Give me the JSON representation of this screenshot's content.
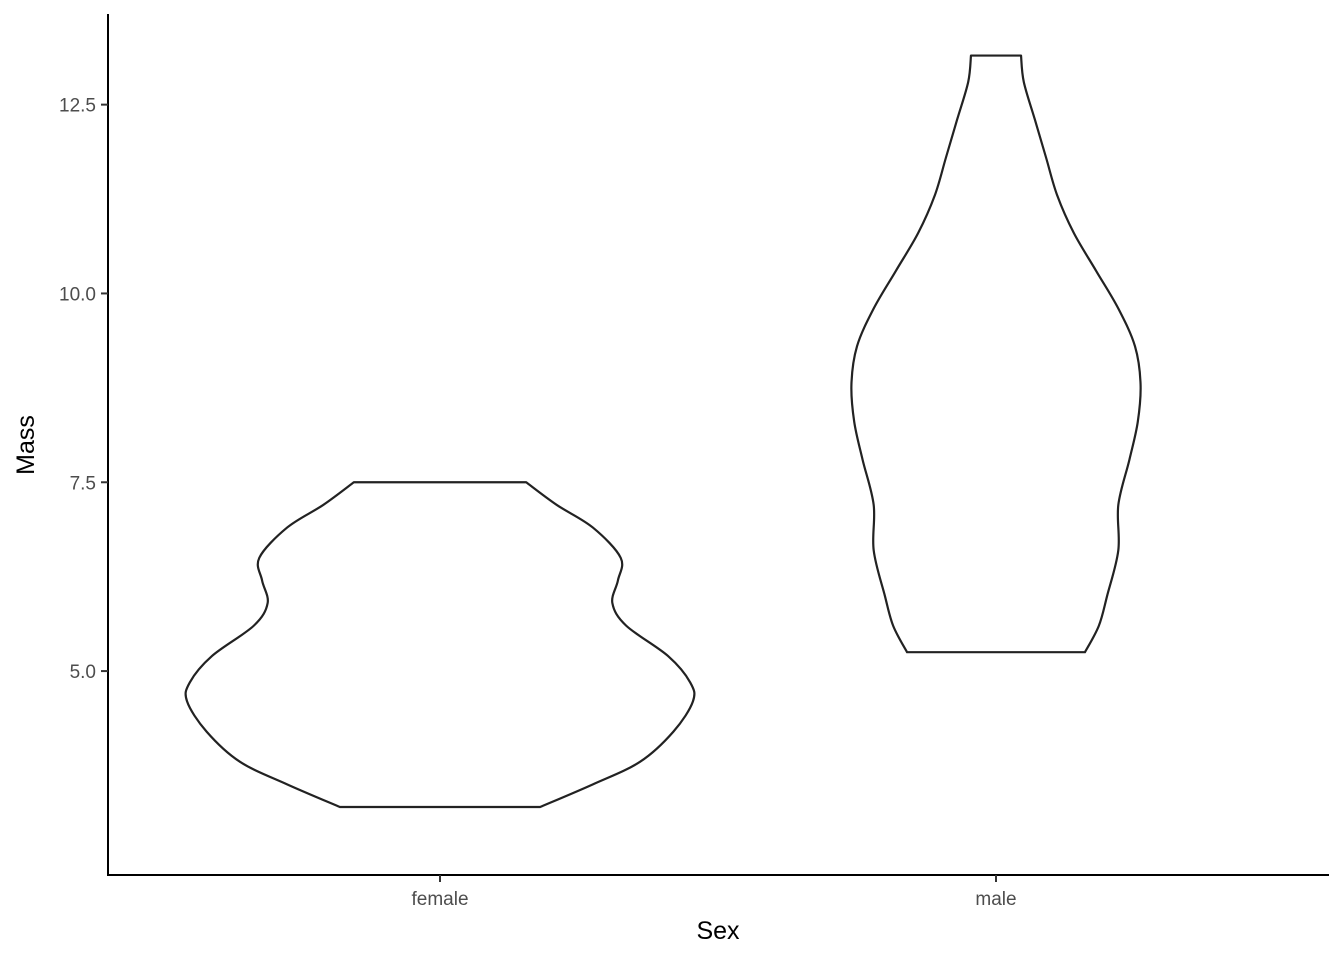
{
  "chart_data": {
    "type": "violin",
    "title": "",
    "xlabel": "Sex",
    "ylabel": "Mass",
    "categories": [
      "female",
      "male"
    ],
    "ylim": [
      2.3,
      13.7
    ],
    "y_ticks": [
      5.0,
      7.5,
      10.0,
      12.5
    ],
    "y_tick_labels": [
      "5.0",
      "7.5",
      "10.0",
      "12.5"
    ],
    "grid": false,
    "legend": "none",
    "colors": {
      "outline": "#222222",
      "fill": "#ffffff",
      "axis": "#000000"
    },
    "series": [
      {
        "category": "female",
        "y_min": 3.2,
        "y_max": 7.5,
        "density_profile": [
          {
            "y": 3.2,
            "half_width": 0.36
          },
          {
            "y": 3.5,
            "half_width": 0.55
          },
          {
            "y": 3.8,
            "half_width": 0.72
          },
          {
            "y": 4.2,
            "half_width": 0.84
          },
          {
            "y": 4.6,
            "half_width": 0.91
          },
          {
            "y": 4.85,
            "half_width": 0.9
          },
          {
            "y": 5.2,
            "half_width": 0.82
          },
          {
            "y": 5.6,
            "half_width": 0.67
          },
          {
            "y": 5.9,
            "half_width": 0.62
          },
          {
            "y": 6.2,
            "half_width": 0.64
          },
          {
            "y": 6.5,
            "half_width": 0.65
          },
          {
            "y": 6.9,
            "half_width": 0.55
          },
          {
            "y": 7.2,
            "half_width": 0.42
          },
          {
            "y": 7.5,
            "half_width": 0.31
          }
        ]
      },
      {
        "category": "male",
        "y_min": 5.25,
        "y_max": 13.15,
        "density_profile": [
          {
            "y": 5.25,
            "half_width": 0.32
          },
          {
            "y": 5.6,
            "half_width": 0.37
          },
          {
            "y": 6.0,
            "half_width": 0.4
          },
          {
            "y": 6.6,
            "half_width": 0.44
          },
          {
            "y": 7.2,
            "half_width": 0.44
          },
          {
            "y": 7.8,
            "half_width": 0.48
          },
          {
            "y": 8.3,
            "half_width": 0.51
          },
          {
            "y": 8.8,
            "half_width": 0.52
          },
          {
            "y": 9.3,
            "half_width": 0.5
          },
          {
            "y": 9.8,
            "half_width": 0.44
          },
          {
            "y": 10.3,
            "half_width": 0.36
          },
          {
            "y": 10.8,
            "half_width": 0.28
          },
          {
            "y": 11.3,
            "half_width": 0.22
          },
          {
            "y": 11.8,
            "half_width": 0.18
          },
          {
            "y": 12.3,
            "half_width": 0.14
          },
          {
            "y": 12.8,
            "half_width": 0.1
          },
          {
            "y": 13.15,
            "half_width": 0.09
          }
        ]
      }
    ]
  }
}
